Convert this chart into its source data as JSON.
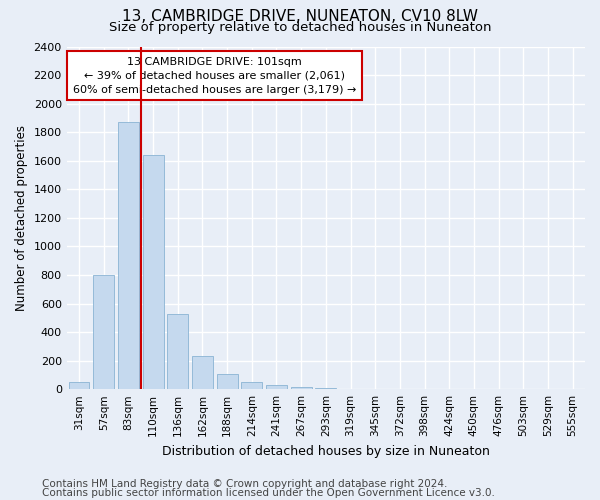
{
  "title": "13, CAMBRIDGE DRIVE, NUNEATON, CV10 8LW",
  "subtitle": "Size of property relative to detached houses in Nuneaton",
  "xlabel": "Distribution of detached houses by size in Nuneaton",
  "ylabel": "Number of detached properties",
  "categories": [
    "31sqm",
    "57sqm",
    "83sqm",
    "110sqm",
    "136sqm",
    "162sqm",
    "188sqm",
    "214sqm",
    "241sqm",
    "267sqm",
    "293sqm",
    "319sqm",
    "345sqm",
    "372sqm",
    "398sqm",
    "424sqm",
    "450sqm",
    "476sqm",
    "503sqm",
    "529sqm",
    "555sqm"
  ],
  "values": [
    50,
    800,
    1870,
    1640,
    525,
    235,
    105,
    50,
    30,
    18,
    10,
    0,
    0,
    0,
    0,
    0,
    0,
    0,
    0,
    0,
    0
  ],
  "bar_color": "#c5d9ee",
  "bar_edge_color": "#8ab4d4",
  "vline_color": "#cc0000",
  "annotation_text": "13 CAMBRIDGE DRIVE: 101sqm\n← 39% of detached houses are smaller (2,061)\n60% of semi-detached houses are larger (3,179) →",
  "annotation_box_color": "white",
  "annotation_box_edge_color": "#cc0000",
  "ylim": [
    0,
    2400
  ],
  "yticks": [
    0,
    200,
    400,
    600,
    800,
    1000,
    1200,
    1400,
    1600,
    1800,
    2000,
    2200,
    2400
  ],
  "footer_line1": "Contains HM Land Registry data © Crown copyright and database right 2024.",
  "footer_line2": "Contains public sector information licensed under the Open Government Licence v3.0.",
  "bg_color": "#e8eef7",
  "plot_bg_color": "#e8eef7",
  "title_fontsize": 11,
  "subtitle_fontsize": 9.5,
  "ylabel_fontsize": 8.5,
  "xlabel_fontsize": 9,
  "footer_fontsize": 7.5
}
